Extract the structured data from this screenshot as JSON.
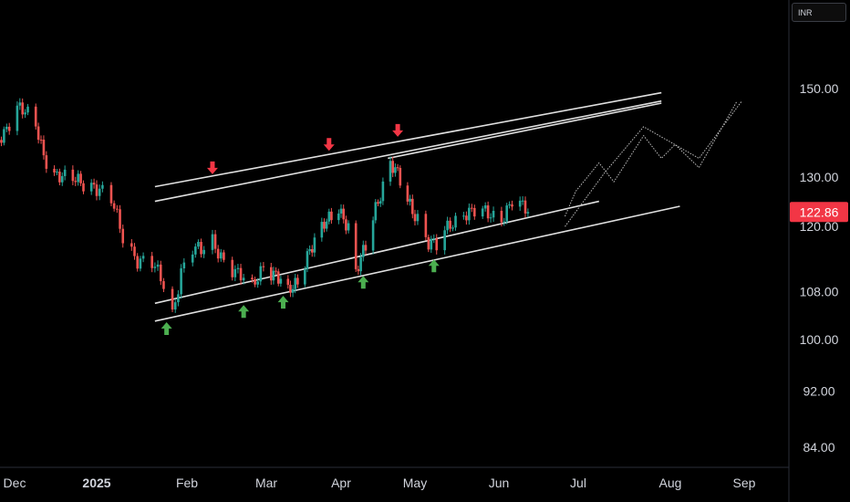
{
  "toolbar": {
    "currency": "INR"
  },
  "colors": {
    "background": "#000000",
    "up": "#26a69a",
    "down": "#ef5350",
    "trendline": "#e0e0e0",
    "arrow_up": "#4caf50",
    "arrow_down": "#f23645",
    "price_tag": "#f23645",
    "axis_text": "#d1d4dc"
  },
  "chart_data": {
    "type": "candlestick",
    "title": "",
    "xlabel": "",
    "ylabel": "",
    "y_axis": {
      "ticks": [
        84,
        92,
        100,
        108,
        120,
        130,
        150
      ],
      "tick_labels": [
        "84.00",
        "92.00",
        "100.00",
        "108.00",
        "120.00",
        "130.00",
        "150.00"
      ]
    },
    "x_axis": {
      "tick_labels": [
        "Dec",
        "2025",
        "Feb",
        "Mar",
        "Apr",
        "May",
        "Jun",
        "Jul",
        "Aug",
        "Sep"
      ],
      "tick_dates": [
        "2024-12-01",
        "2025-01-01",
        "2025-02-01",
        "2025-03-01",
        "2025-04-01",
        "2025-05-01",
        "2025-06-01",
        "2025-07-01",
        "2025-08-01",
        "2025-09-01"
      ],
      "bold_label": "2025"
    },
    "last_price": {
      "value": 122.86,
      "label": "122.86"
    },
    "price_series": [
      [
        "2024-11-18",
        131
      ],
      [
        "2024-11-22",
        135
      ],
      [
        "2024-11-27",
        140
      ],
      [
        "2024-12-02",
        146
      ],
      [
        "2024-12-05",
        144
      ],
      [
        "2024-12-09",
        141
      ],
      [
        "2024-12-12",
        135
      ],
      [
        "2024-12-16",
        131
      ],
      [
        "2024-12-20",
        129.5
      ],
      [
        "2024-12-26",
        129
      ],
      [
        "2024-12-31",
        128.5
      ],
      [
        "2025-01-06",
        125
      ],
      [
        "2025-01-10",
        118
      ],
      [
        "2025-01-15",
        114
      ],
      [
        "2025-01-20",
        113
      ],
      [
        "2025-01-25",
        108
      ],
      [
        "2025-01-27",
        104
      ],
      [
        "2025-01-30",
        112
      ],
      [
        "2025-02-03",
        116
      ],
      [
        "2025-02-06",
        115
      ],
      [
        "2025-02-10",
        117
      ],
      [
        "2025-02-14",
        114
      ],
      [
        "2025-02-19",
        111
      ],
      [
        "2025-02-24",
        108.5
      ],
      [
        "2025-02-28",
        113
      ],
      [
        "2025-03-05",
        111
      ],
      [
        "2025-03-10",
        107.5
      ],
      [
        "2025-03-14",
        110
      ],
      [
        "2025-03-18",
        115
      ],
      [
        "2025-03-25",
        120
      ],
      [
        "2025-03-31",
        124
      ],
      [
        "2025-04-04",
        120
      ],
      [
        "2025-04-07",
        111
      ],
      [
        "2025-04-11",
        116
      ],
      [
        "2025-04-15",
        124
      ],
      [
        "2025-04-21",
        133
      ],
      [
        "2025-04-24",
        130
      ],
      [
        "2025-04-28",
        125
      ],
      [
        "2025-05-02",
        122
      ],
      [
        "2025-05-06",
        117
      ],
      [
        "2025-05-09",
        116
      ],
      [
        "2025-05-14",
        120.5
      ],
      [
        "2025-05-19",
        123
      ],
      [
        "2025-05-26",
        122.5
      ],
      [
        "2025-06-02",
        122
      ],
      [
        "2025-06-06",
        125
      ],
      [
        "2025-06-10",
        123.5
      ],
      [
        "2025-06-12",
        122.86
      ]
    ],
    "trend_channel": [
      {
        "name": "upper-outer",
        "from": [
          "2025-01-21",
          128
        ],
        "to": [
          "2025-07-29",
          149
        ]
      },
      {
        "name": "upper-inner",
        "from": [
          "2025-01-21",
          125
        ],
        "to": [
          "2025-07-29",
          147
        ]
      },
      {
        "name": "upper-inner-2",
        "from": [
          "2025-04-20",
          134
        ],
        "to": [
          "2025-07-29",
          146.5
        ]
      },
      {
        "name": "lower-inner",
        "from": [
          "2025-01-21",
          106
        ],
        "to": [
          "2025-07-08",
          125
        ]
      },
      {
        "name": "lower-outer",
        "from": [
          "2025-01-21",
          103
        ],
        "to": [
          "2025-08-05",
          124
        ]
      }
    ],
    "projection_path": [
      [
        "2025-06-26",
        122
      ],
      [
        "2025-06-30",
        127
      ],
      [
        "2025-07-08",
        133
      ],
      [
        "2025-07-13",
        129
      ],
      [
        "2025-07-23",
        139
      ],
      [
        "2025-07-29",
        134
      ],
      [
        "2025-08-03",
        137
      ],
      [
        "2025-08-13",
        132
      ],
      [
        "2025-08-29",
        147
      ]
    ],
    "projection_path_2": [
      [
        "2025-06-26",
        120
      ],
      [
        "2025-07-10",
        131
      ],
      [
        "2025-07-23",
        141
      ],
      [
        "2025-08-13",
        134
      ],
      [
        "2025-08-31",
        147
      ]
    ],
    "markers": [
      {
        "type": "up",
        "date": "2025-01-25"
      },
      {
        "type": "up",
        "date": "2025-02-21"
      },
      {
        "type": "up",
        "date": "2025-03-08"
      },
      {
        "type": "up",
        "date": "2025-04-10"
      },
      {
        "type": "up",
        "date": "2025-05-08"
      },
      {
        "type": "down",
        "date": "2025-02-10"
      },
      {
        "type": "down",
        "date": "2025-03-27"
      },
      {
        "type": "down",
        "date": "2025-04-24"
      }
    ]
  }
}
